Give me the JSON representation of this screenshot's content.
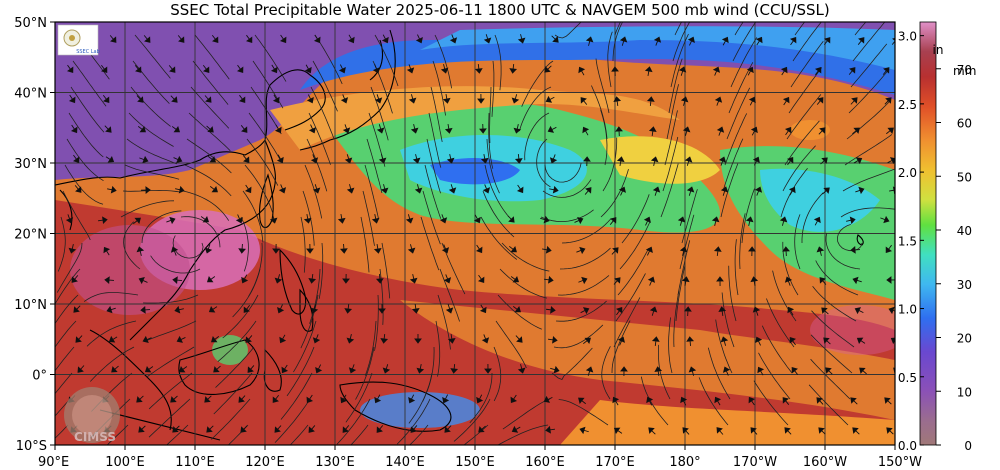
{
  "title": "SSEC Total Precipitable Water  2025-06-11 1800 UTC & NAVGEM 500 mb wind (CCU/SSL)",
  "map": {
    "lat_labels": [
      "50°N",
      "40°N",
      "30°N",
      "20°N",
      "10°N",
      "0°",
      "10°S"
    ],
    "lon_labels": [
      "90°E",
      "100°E",
      "110°E",
      "120°E",
      "130°E",
      "140°E",
      "150°E",
      "160°E",
      "170°E",
      "180°",
      "170°W",
      "160°W",
      "150°W"
    ],
    "extent": {
      "lon_min": 90,
      "lon_max": 210,
      "lat_min": -10,
      "lat_max": 50
    }
  },
  "colorbar": {
    "in_unit": "in",
    "mm_unit": "mm",
    "in_ticks": [
      "3.0",
      "2.5",
      "2.0",
      "1.5",
      "1.0",
      "0.5",
      "0.0"
    ],
    "mm_ticks": [
      "70",
      "60",
      "50",
      "40",
      "30",
      "20",
      "10",
      "0"
    ]
  },
  "logos": {
    "lab_logo_text": "SSEC Lab",
    "cimss_text": "CIMSS"
  },
  "colors": {
    "very_dry": "#9a7070",
    "dry": "#7a40b0",
    "moist_low": "#2f6ff0",
    "moist_mid": "#3fd0e0",
    "moist": "#50d060",
    "wet": "#f0d040",
    "very_wet": "#f09030",
    "saturated": "#c03030",
    "extreme": "#e070c0"
  }
}
